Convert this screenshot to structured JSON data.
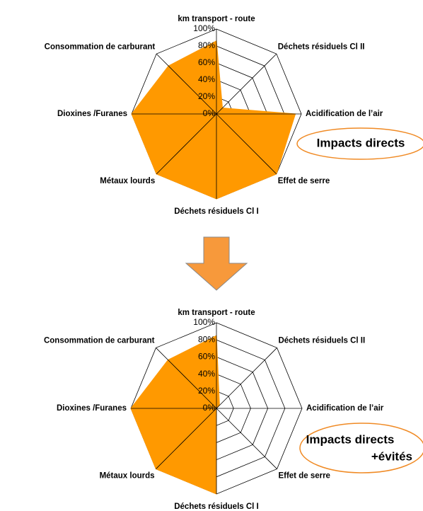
{
  "chart_data": [
    {
      "type": "radar",
      "categories": [
        "km transport - route",
        "Déchets résiduels Cl II",
        "Acidification de l’air",
        "Effet de serre",
        "Déchets résiduels Cl I",
        "Métaux lourds",
        "Dioxines /Furanes",
        "Consommation de carburant"
      ],
      "values": [
        86,
        10,
        93,
        100,
        100,
        100,
        100,
        80
      ],
      "color": "#ff9900",
      "ylim": [
        0,
        100
      ],
      "yticks": [
        {
          "value": 0,
          "label": "0%"
        },
        {
          "value": 20,
          "label": "20%"
        },
        {
          "value": 40,
          "label": "40%"
        },
        {
          "value": 60,
          "label": "60%"
        },
        {
          "value": 80,
          "label": "80%"
        },
        {
          "value": 100,
          "label": "100%"
        }
      ],
      "annotation": [
        "Impacts directs"
      ]
    },
    {
      "type": "radar",
      "categories": [
        "km transport - route",
        "Déchets résiduels Cl II",
        "Acidification de l’air",
        "Effet de serre",
        "Déchets résiduels Cl I",
        "Métaux lourds",
        "Dioxines /Furanes",
        "Consommation de carburant"
      ],
      "values": [
        85,
        5,
        0,
        0,
        100,
        100,
        100,
        80
      ],
      "color": "#ff9900",
      "ylim": [
        0,
        100
      ],
      "yticks": [
        {
          "value": 0,
          "label": "0%"
        },
        {
          "value": 20,
          "label": "20%"
        },
        {
          "value": 40,
          "label": "40%"
        },
        {
          "value": 60,
          "label": "60%"
        },
        {
          "value": 80,
          "label": "80%"
        },
        {
          "value": 100,
          "label": "100%"
        }
      ],
      "annotation": [
        "Impacts directs",
        "+évités"
      ]
    }
  ]
}
